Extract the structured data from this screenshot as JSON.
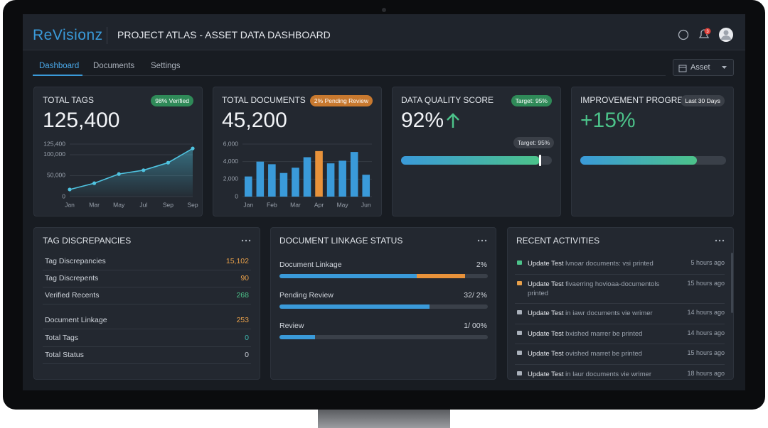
{
  "header": {
    "logo": "ReVisionz",
    "title": "PROJECT ATLAS - ASSET DATA DASHBOARD",
    "notifications": 3
  },
  "tabs": [
    "Dashboard",
    "Documents",
    "Settings"
  ],
  "filter": "Asset",
  "cards": [
    {
      "title": "TOTAL TAGS",
      "badge": "98% Verified",
      "value": "125,400"
    },
    {
      "title": "TOTAL DOCUMENTS",
      "badge": "2% Pending Review",
      "value": "45,200"
    },
    {
      "title": "DATA QUALITY SCORE",
      "badge": "Target: 95%",
      "value": "92%",
      "tooltip": "Target: 95%",
      "progress": 92
    },
    {
      "title": "IMPROVEMENT PROGRESS",
      "badge": "Last 30 Days",
      "value": "+15%",
      "progress": 80
    }
  ],
  "tag_discrepancies": {
    "title": "TAG DISCREPANCIES",
    "rows": [
      {
        "label": "Tag Discrepancies",
        "value": "15,102",
        "color": "#e8a04a"
      },
      {
        "label": "Tag Discrepents",
        "value": "90",
        "color": "#e8a04a"
      },
      {
        "label": "Verified Recents",
        "value": "268",
        "color": "#4cc38a"
      },
      {
        "label": "Document Linkage",
        "value": "253",
        "color": "#e8a04a"
      },
      {
        "label": "Total Tags",
        "value": "0",
        "color": "#3fb8b0"
      },
      {
        "label": "Total Status",
        "value": "0",
        "color": "#c9ced6"
      }
    ]
  },
  "document_linkage": {
    "title": "DOCUMENT LINKAGE STATUS",
    "rows": [
      {
        "label": "Document Linkage",
        "value": "2%",
        "segments": [
          {
            "value": 66,
            "color": "#3a9ad9"
          },
          {
            "value": 23,
            "color": "#e8923a"
          }
        ]
      },
      {
        "label": "Pending Review",
        "value": "32/ 2%",
        "segments": [
          {
            "value": 72,
            "color": "#3a9ad9"
          }
        ]
      },
      {
        "label": "Review",
        "value": "1/ 00%",
        "segments": [
          {
            "value": 17,
            "color": "#3a9ad9"
          }
        ]
      }
    ]
  },
  "recent_activities": {
    "title": "RECENT ACTIVITIES",
    "items": [
      {
        "action": "Update Test",
        "detail": "lvnoar documents: vsi printed",
        "time": "5 hours ago"
      },
      {
        "action": "Update Test",
        "detail": "fivaerring hovioaa-documentols printed",
        "time": "15 hours ago"
      },
      {
        "action": "Update Test",
        "detail": "in iawr documents vie wrimer",
        "time": "14 hours ago"
      },
      {
        "action": "Update Test",
        "detail": "bxished marrer be printed",
        "time": "14 hours ago"
      },
      {
        "action": "Update Test",
        "detail": "ovished marret be printed",
        "time": "15 hours ago"
      },
      {
        "action": "Update Test",
        "detail": "in laur documents vie wrimer",
        "time": "18 hours ago"
      }
    ]
  },
  "chart_data": [
    {
      "type": "line",
      "categories": [
        "Jan",
        "Mar",
        "May",
        "Jul",
        "Sep",
        "Sep"
      ],
      "values": [
        17000,
        32000,
        54000,
        63000,
        81000,
        115000
      ],
      "color": "#4fc3e0",
      "ylim": [
        0,
        125400
      ],
      "yticks": [
        0,
        {
          "value": 50000,
          "label": "50,000"
        },
        {
          "value": 100000,
          "label": "100,000"
        },
        {
          "value": 125400,
          "label": "125,400"
        }
      ],
      "grid": true
    },
    {
      "type": "bar",
      "categories": [
        "Jan",
        null,
        "Feb",
        null,
        "Mar",
        null,
        "Apr",
        null,
        "May",
        null,
        "Jun"
      ],
      "values": [
        2300,
        4000,
        3700,
        2700,
        3300,
        4500,
        5200,
        3800,
        4100,
        5100,
        2500
      ],
      "colors": [
        "#3a9ad9",
        "#3a9ad9",
        "#3a9ad9",
        "#3a9ad9",
        "#3a9ad9",
        "#3a9ad9",
        "#e8923a",
        "#3a9ad9",
        "#3a9ad9",
        "#3a9ad9",
        "#3a9ad9"
      ],
      "ylim": [
        0,
        6000
      ],
      "yticks": [
        0,
        {
          "value": 2000,
          "label": "2,000"
        },
        {
          "value": 4000,
          "label": "4,000"
        },
        {
          "value": 6000,
          "label": "6,000"
        }
      ],
      "grid": true
    }
  ]
}
